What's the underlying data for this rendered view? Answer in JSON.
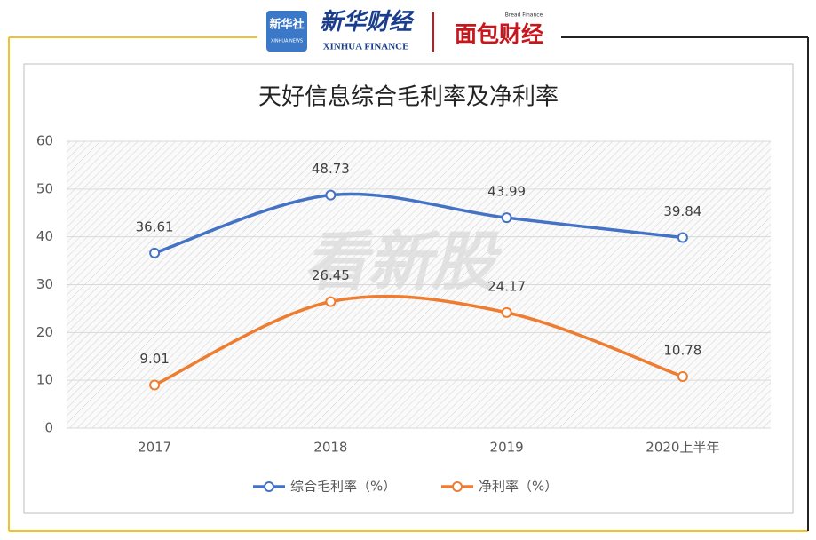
{
  "header": {
    "xinhua": "新华社",
    "xinhua_en": "XINHUA NEWS",
    "finance": "新华财经",
    "finance_en": "XINHUA FINANCE",
    "bread": "面包财经",
    "bread_en": "Bread Finance"
  },
  "chart_data": {
    "type": "line",
    "title": "天好信息综合毛利率及净利率",
    "watermark": "看新股",
    "categories": [
      "2017",
      "2018",
      "2019",
      "2020上半年"
    ],
    "series": [
      {
        "name": "综合毛利率（%）",
        "color": "#4472c4",
        "values": [
          36.61,
          48.73,
          43.99,
          39.84
        ]
      },
      {
        "name": "净利率（%）",
        "color": "#ed7d31",
        "values": [
          9.01,
          26.45,
          24.17,
          10.78
        ]
      }
    ],
    "ylim": [
      0,
      60
    ],
    "yticks": [
      0,
      10,
      20,
      30,
      40,
      50,
      60
    ],
    "grid": true,
    "smooth": true,
    "legend": "bottom"
  }
}
